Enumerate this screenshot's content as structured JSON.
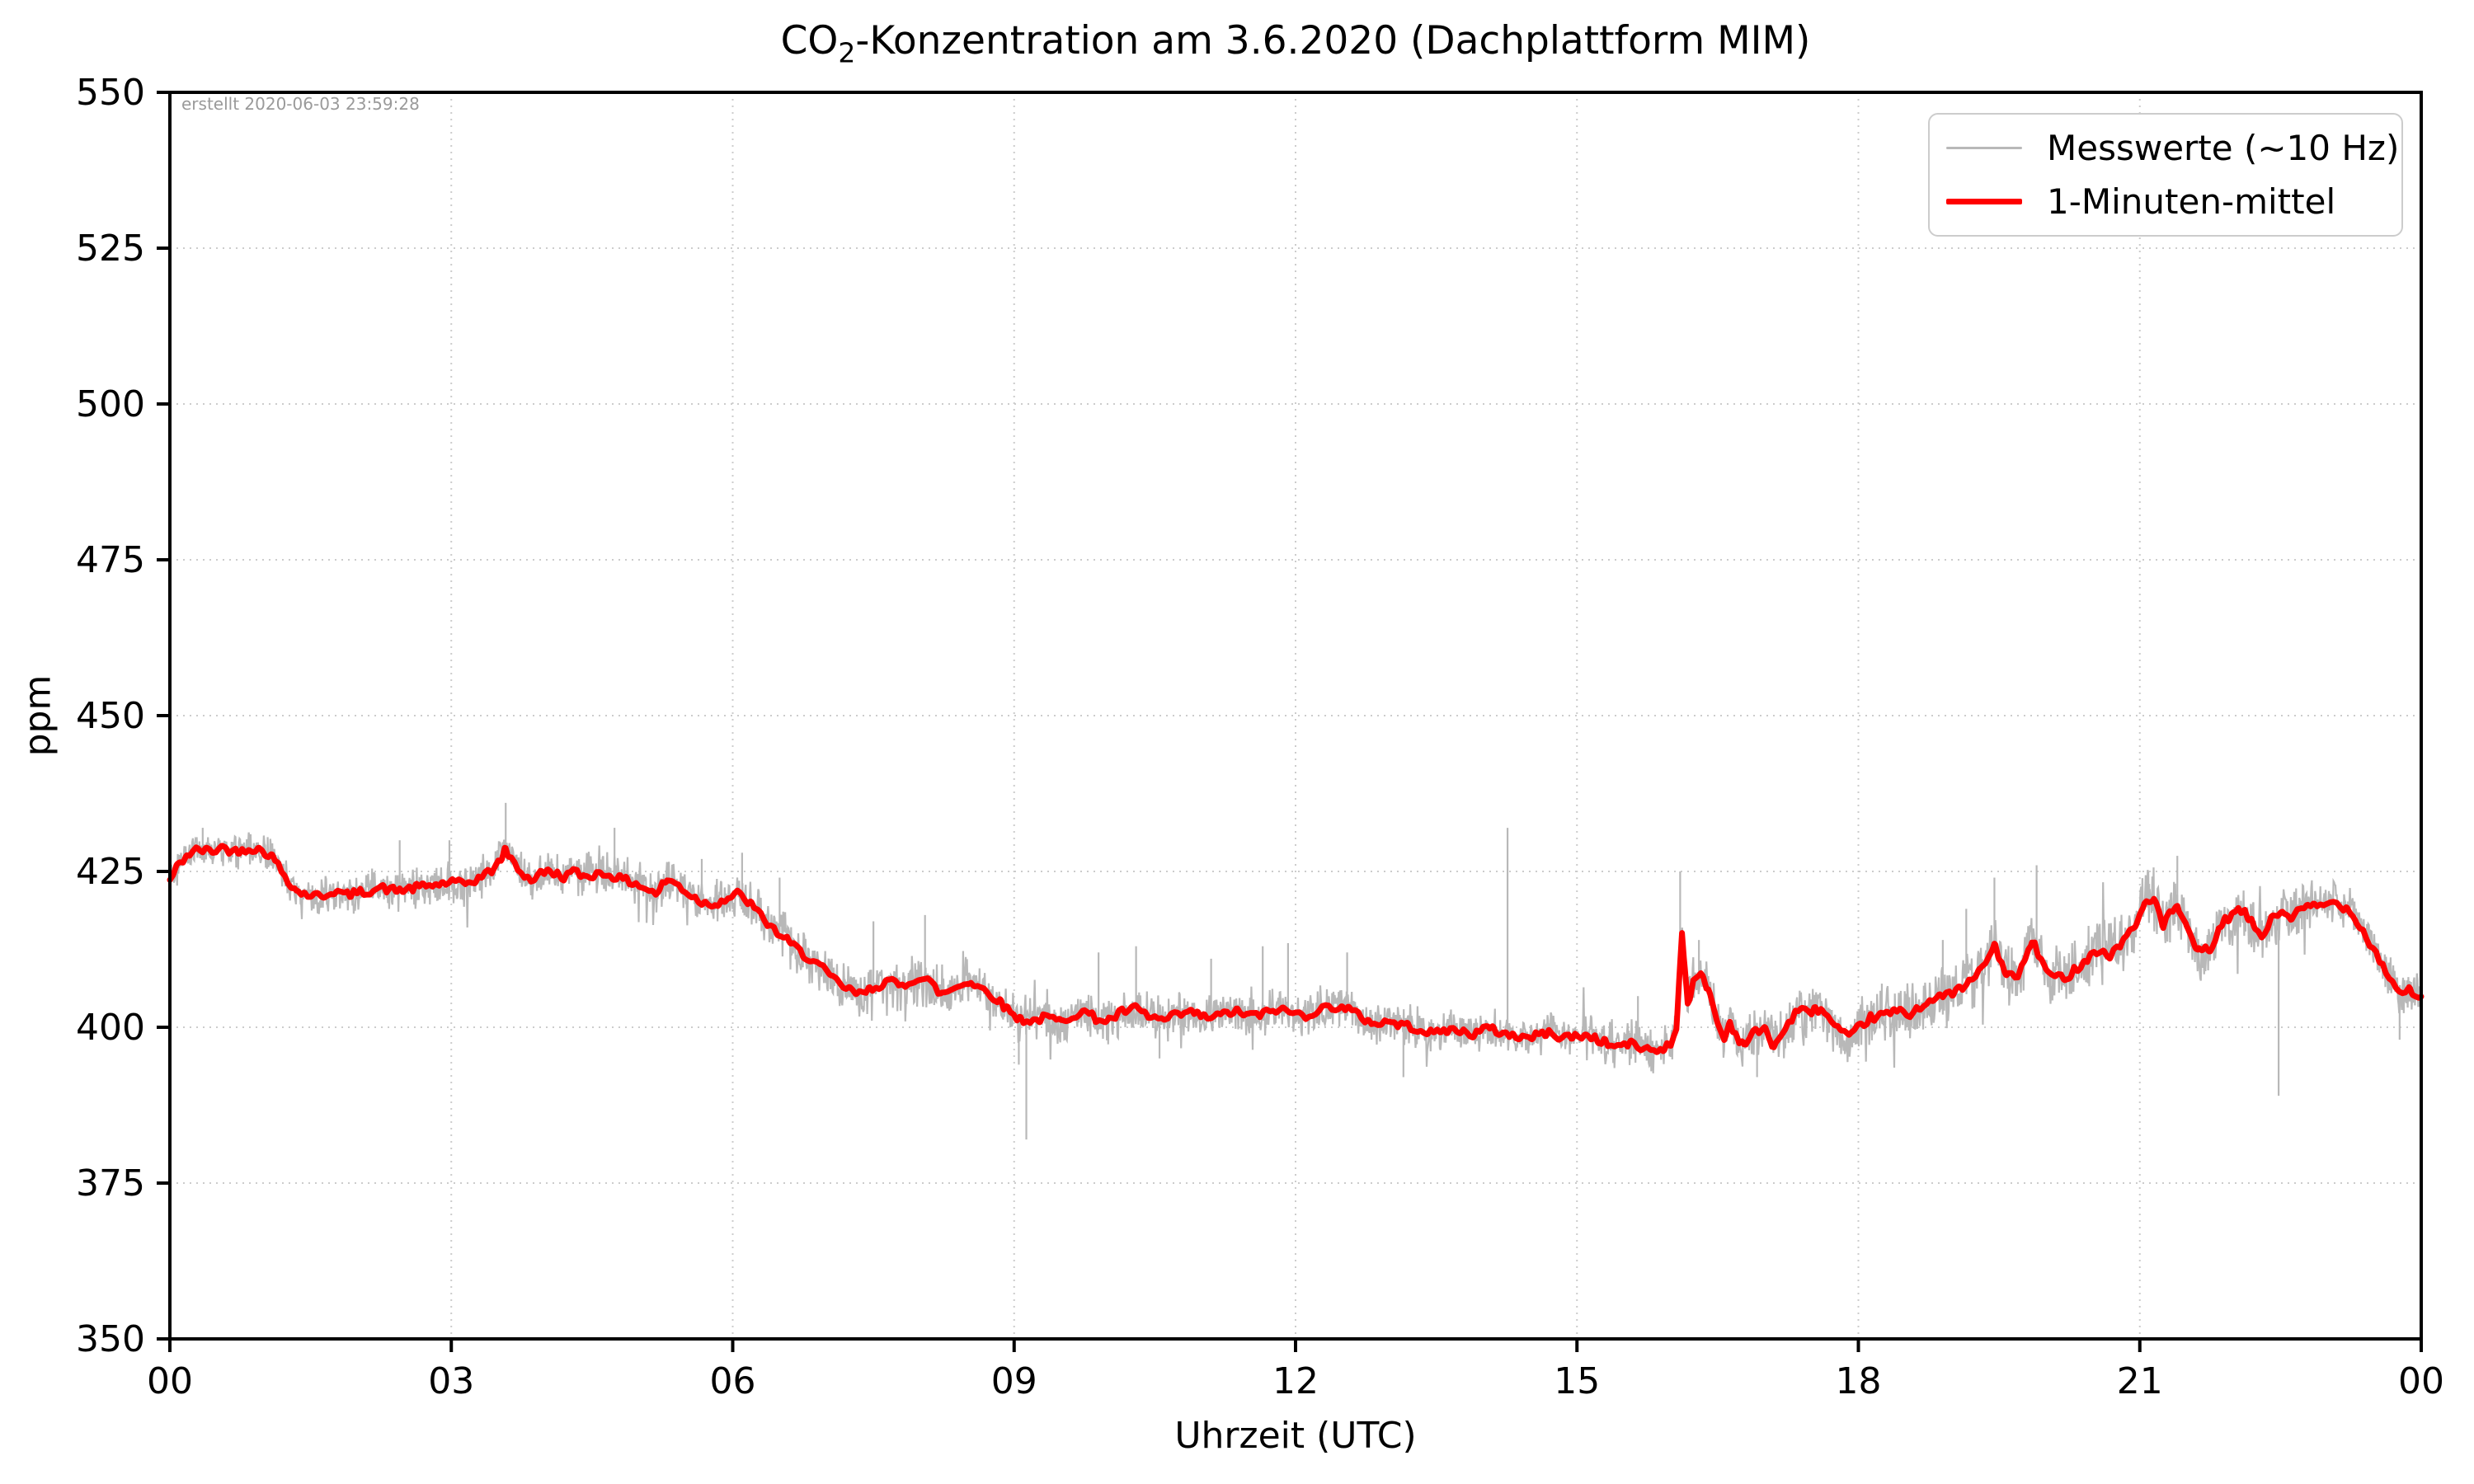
{
  "figure": {
    "title_full": "CO2-Konzentration am 3.6.2020 (Dachplattform MIM)",
    "title_parts": {
      "pre": "CO",
      "sub": "2",
      "post": "-Konzentration am 3.6.2020 (Dachplattform MIM)"
    },
    "created_note": "erstellt 2020-06-03 23:59:28",
    "xlabel": "Uhrzeit (UTC)",
    "ylabel": "ppm"
  },
  "chart_data": {
    "type": "line",
    "title": "CO2-Konzentration am 3.6.2020 (Dachplattform MIM)",
    "xlabel": "Uhrzeit (UTC)",
    "ylabel": "ppm",
    "xlim": [
      0,
      24
    ],
    "ylim": [
      350,
      550
    ],
    "grid": "dotted",
    "grid_color": "#cccccc",
    "axes_color": "#000000",
    "legend_position": "upper right",
    "x_ticks": {
      "values": [
        0,
        3,
        6,
        9,
        12,
        15,
        18,
        21,
        24
      ],
      "labels": [
        "00",
        "03",
        "06",
        "09",
        "12",
        "15",
        "18",
        "21",
        "00"
      ]
    },
    "y_ticks": {
      "values": [
        350,
        375,
        400,
        425,
        450,
        475,
        500,
        525,
        550
      ],
      "labels": [
        "350",
        "375",
        "400",
        "425",
        "450",
        "475",
        "500",
        "525",
        "550"
      ]
    },
    "series": [
      {
        "name": "Messwerte (~10 Hz)",
        "color": "#b8b8b8",
        "style": "raw-10hz-noise-around-mean",
        "line_width": 2.2,
        "noise_band_ppm": [
          [
            0,
            2.2
          ],
          [
            1.5,
            2.4
          ],
          [
            3,
            2.8
          ],
          [
            5,
            3.0
          ],
          [
            6.5,
            3.2
          ],
          [
            8,
            3.5
          ],
          [
            9.5,
            3.2
          ],
          [
            11,
            3.0
          ],
          [
            13,
            2.8
          ],
          [
            15,
            2.8
          ],
          [
            16,
            3.2
          ],
          [
            17,
            3.5
          ],
          [
            18,
            3.8
          ],
          [
            19,
            4.2
          ],
          [
            20,
            4.0
          ],
          [
            21,
            4.5
          ],
          [
            22,
            4.0
          ],
          [
            23,
            3.0
          ],
          [
            24,
            3.0
          ]
        ],
        "spikes": [
          [
            0.35,
            432
          ],
          [
            2.45,
            430
          ],
          [
            2.98,
            430
          ],
          [
            3.58,
            436
          ],
          [
            4.74,
            432
          ],
          [
            5.67,
            427
          ],
          [
            6.1,
            428
          ],
          [
            6.5,
            424
          ],
          [
            7.5,
            417
          ],
          [
            8.05,
            418
          ],
          [
            9.05,
            394
          ],
          [
            9.13,
            382
          ],
          [
            9.9,
            412
          ],
          [
            10.3,
            413
          ],
          [
            10.55,
            395
          ],
          [
            11.1,
            411
          ],
          [
            11.65,
            413
          ],
          [
            11.92,
            413.5
          ],
          [
            12.55,
            412
          ],
          [
            13.15,
            392
          ],
          [
            14.26,
            432
          ],
          [
            15.65,
            405
          ],
          [
            16.1,
            425
          ],
          [
            16.3,
            414
          ],
          [
            16.92,
            392
          ],
          [
            18.25,
            407
          ],
          [
            18.9,
            414
          ],
          [
            19.15,
            419
          ],
          [
            19.45,
            424
          ],
          [
            19.9,
            426
          ],
          [
            20.05,
            405
          ],
          [
            21.1,
            423
          ],
          [
            21.4,
            427.5
          ],
          [
            21.7,
            409
          ],
          [
            22.48,
            389
          ],
          [
            23.77,
            398
          ]
        ]
      },
      {
        "name": "1-Minuten-mittel",
        "color": "#ff0000",
        "style": "mean-line",
        "line_width": 7,
        "points": [
          [
            0,
            423.5
          ],
          [
            0.08,
            425.8
          ],
          [
            0.18,
            427.6
          ],
          [
            0.3,
            428.5
          ],
          [
            0.45,
            428.2
          ],
          [
            0.55,
            428.9
          ],
          [
            0.7,
            428.2
          ],
          [
            0.85,
            428.8
          ],
          [
            1.0,
            428.3
          ],
          [
            1.1,
            427.2
          ],
          [
            1.22,
            424.5
          ],
          [
            1.35,
            421.8
          ],
          [
            1.5,
            421.2
          ],
          [
            1.62,
            421.0
          ],
          [
            1.75,
            421.9
          ],
          [
            1.88,
            421.2
          ],
          [
            2.0,
            421.5
          ],
          [
            2.12,
            421.9
          ],
          [
            2.25,
            422.4
          ],
          [
            2.4,
            421.9
          ],
          [
            2.55,
            422.2
          ],
          [
            2.7,
            422.6
          ],
          [
            2.85,
            422.9
          ],
          [
            3.0,
            423.3
          ],
          [
            3.12,
            422.9
          ],
          [
            3.25,
            423.6
          ],
          [
            3.4,
            424.8
          ],
          [
            3.5,
            426.3
          ],
          [
            3.58,
            428.4
          ],
          [
            3.66,
            426.5
          ],
          [
            3.75,
            424.8
          ],
          [
            3.85,
            423.6
          ],
          [
            3.95,
            424.6
          ],
          [
            4.05,
            425.1
          ],
          [
            4.18,
            424.1
          ],
          [
            4.3,
            424.9
          ],
          [
            4.42,
            424.2
          ],
          [
            4.55,
            424.6
          ],
          [
            4.68,
            424.6
          ],
          [
            4.8,
            423.8
          ],
          [
            4.95,
            423.2
          ],
          [
            5.08,
            422.2
          ],
          [
            5.18,
            421.4
          ],
          [
            5.3,
            423.7
          ],
          [
            5.42,
            422.8
          ],
          [
            5.55,
            421.2
          ],
          [
            5.68,
            420.0
          ],
          [
            5.8,
            419.8
          ],
          [
            5.92,
            420.5
          ],
          [
            6.05,
            421.4
          ],
          [
            6.18,
            420.0
          ],
          [
            6.3,
            417.8
          ],
          [
            6.45,
            415.5
          ],
          [
            6.6,
            413.6
          ],
          [
            6.75,
            411.8
          ],
          [
            6.9,
            410.2
          ],
          [
            7.05,
            408.0
          ],
          [
            7.2,
            406.3
          ],
          [
            7.35,
            405.2
          ],
          [
            7.5,
            406.4
          ],
          [
            7.65,
            407.4
          ],
          [
            7.8,
            406.6
          ],
          [
            7.95,
            407.9
          ],
          [
            8.08,
            407.6
          ],
          [
            8.22,
            405.3
          ],
          [
            8.35,
            406.2
          ],
          [
            8.5,
            407.4
          ],
          [
            8.65,
            406.3
          ],
          [
            8.8,
            404.8
          ],
          [
            8.92,
            403.0
          ],
          [
            9.05,
            401.4
          ],
          [
            9.2,
            401.0
          ],
          [
            9.35,
            401.6
          ],
          [
            9.5,
            400.9
          ],
          [
            9.62,
            402.0
          ],
          [
            9.75,
            402.5
          ],
          [
            9.88,
            401.4
          ],
          [
            10.0,
            401.0
          ],
          [
            10.15,
            402.4
          ],
          [
            10.3,
            403.0
          ],
          [
            10.45,
            401.6
          ],
          [
            10.6,
            401.1
          ],
          [
            10.75,
            402.0
          ],
          [
            10.9,
            402.4
          ],
          [
            11.05,
            401.5
          ],
          [
            11.2,
            401.9
          ],
          [
            11.35,
            402.6
          ],
          [
            11.5,
            401.9
          ],
          [
            11.65,
            402.1
          ],
          [
            11.8,
            402.9
          ],
          [
            11.95,
            402.4
          ],
          [
            12.1,
            401.9
          ],
          [
            12.25,
            402.8
          ],
          [
            12.4,
            403.4
          ],
          [
            12.55,
            403.0
          ],
          [
            12.7,
            401.6
          ],
          [
            12.85,
            400.6
          ],
          [
            13.0,
            400.9
          ],
          [
            13.15,
            400.3
          ],
          [
            13.3,
            399.9
          ],
          [
            13.45,
            398.9
          ],
          [
            13.6,
            399.6
          ],
          [
            13.75,
            399.4
          ],
          [
            13.9,
            398.9
          ],
          [
            14.05,
            399.9
          ],
          [
            14.2,
            399.1
          ],
          [
            14.35,
            398.6
          ],
          [
            14.5,
            398.3
          ],
          [
            14.65,
            399.1
          ],
          [
            14.8,
            398.6
          ],
          [
            14.95,
            398.4
          ],
          [
            15.1,
            398.7
          ],
          [
            15.25,
            397.9
          ],
          [
            15.4,
            396.9
          ],
          [
            15.55,
            397.4
          ],
          [
            15.7,
            396.6
          ],
          [
            15.85,
            396.3
          ],
          [
            16.0,
            397.2
          ],
          [
            16.06,
            400.0
          ],
          [
            16.12,
            415.5
          ],
          [
            16.18,
            403.8
          ],
          [
            16.24,
            407.0
          ],
          [
            16.32,
            408.4
          ],
          [
            16.4,
            406.3
          ],
          [
            16.5,
            400.6
          ],
          [
            16.57,
            398.0
          ],
          [
            16.63,
            400.9
          ],
          [
            16.7,
            398.6
          ],
          [
            16.78,
            397.3
          ],
          [
            16.88,
            399.1
          ],
          [
            17.0,
            399.6
          ],
          [
            17.1,
            397.0
          ],
          [
            17.22,
            399.7
          ],
          [
            17.33,
            402.4
          ],
          [
            17.45,
            402.6
          ],
          [
            17.6,
            403.0
          ],
          [
            17.75,
            400.1
          ],
          [
            17.9,
            398.1
          ],
          [
            18.0,
            399.9
          ],
          [
            18.12,
            401.4
          ],
          [
            18.25,
            401.9
          ],
          [
            18.4,
            402.6
          ],
          [
            18.55,
            402.1
          ],
          [
            18.7,
            403.9
          ],
          [
            18.85,
            404.6
          ],
          [
            19.0,
            405.6
          ],
          [
            19.15,
            406.6
          ],
          [
            19.3,
            409.1
          ],
          [
            19.45,
            412.9
          ],
          [
            19.58,
            408.6
          ],
          [
            19.7,
            407.9
          ],
          [
            19.85,
            413.9
          ],
          [
            20.0,
            409.1
          ],
          [
            20.1,
            407.9
          ],
          [
            20.25,
            408.4
          ],
          [
            20.4,
            410.6
          ],
          [
            20.55,
            412.4
          ],
          [
            20.68,
            411.4
          ],
          [
            20.8,
            413.6
          ],
          [
            20.95,
            416.1
          ],
          [
            21.05,
            419.9
          ],
          [
            21.15,
            420.9
          ],
          [
            21.25,
            416.1
          ],
          [
            21.32,
            418.1
          ],
          [
            21.4,
            419.5
          ],
          [
            21.5,
            415.6
          ],
          [
            21.62,
            412.1
          ],
          [
            21.75,
            412.6
          ],
          [
            21.9,
            416.9
          ],
          [
            22.0,
            418.3
          ],
          [
            22.1,
            418.6
          ],
          [
            22.2,
            416.6
          ],
          [
            22.3,
            414.6
          ],
          [
            22.42,
            417.6
          ],
          [
            22.52,
            418.6
          ],
          [
            22.62,
            417.6
          ],
          [
            22.72,
            418.9
          ],
          [
            22.85,
            419.4
          ],
          [
            23.0,
            419.7
          ],
          [
            23.1,
            420.1
          ],
          [
            23.2,
            419.1
          ],
          [
            23.3,
            417.6
          ],
          [
            23.4,
            414.9
          ],
          [
            23.5,
            412.4
          ],
          [
            23.6,
            409.6
          ],
          [
            23.7,
            407.1
          ],
          [
            23.8,
            405.3
          ],
          [
            23.88,
            406.1
          ],
          [
            24.0,
            404.6
          ]
        ]
      }
    ]
  }
}
